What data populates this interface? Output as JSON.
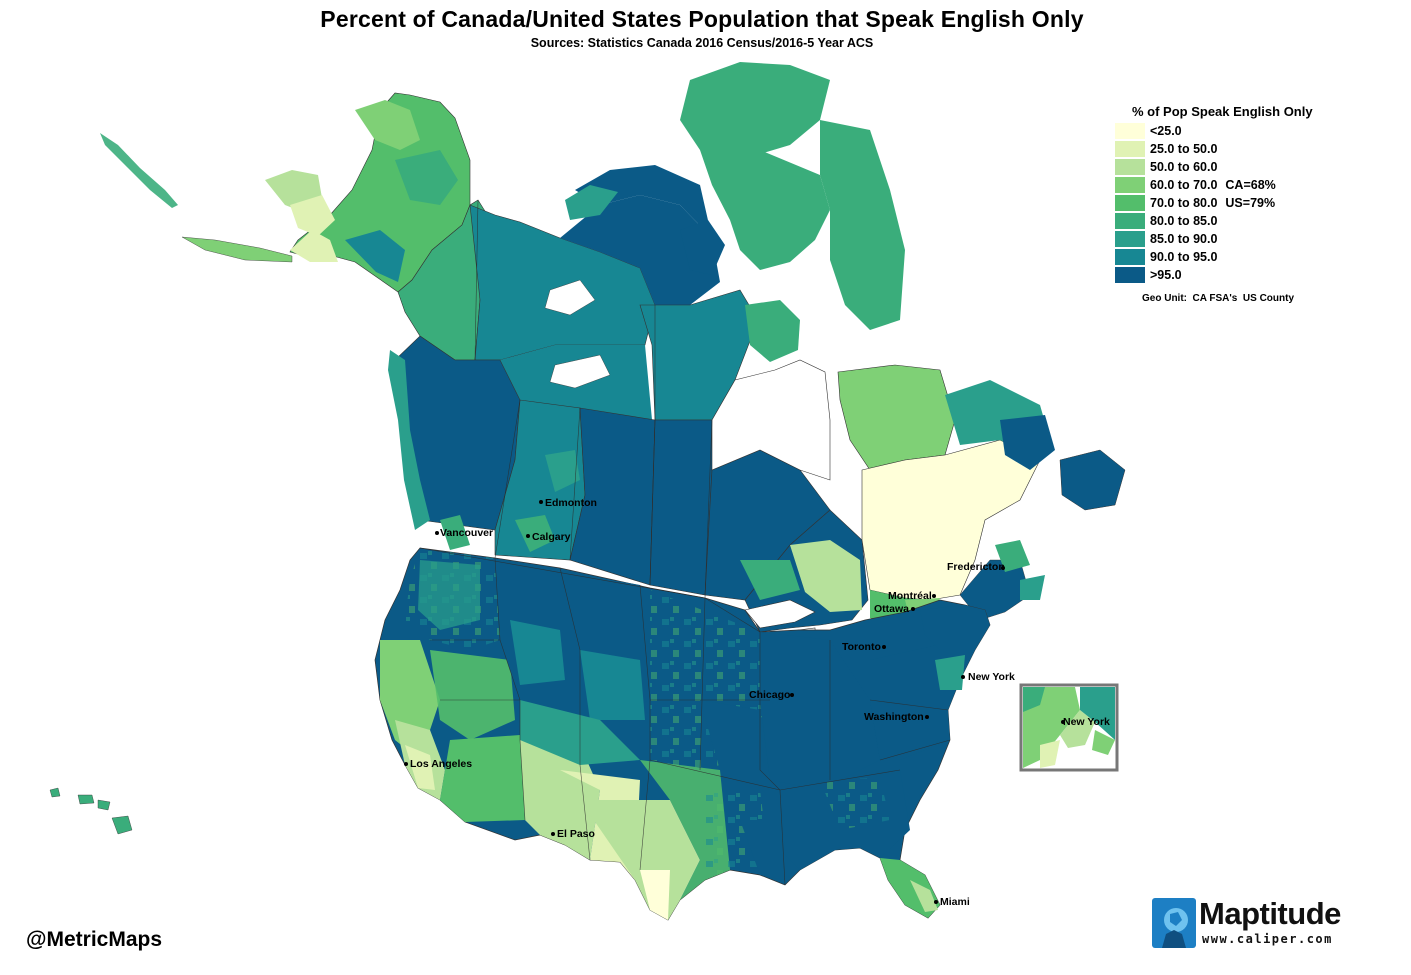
{
  "title": "Percent of Canada/United States Population that Speak English Only",
  "subtitle": "Sources:  Statistics Canada 2016 Census/2016-5 Year ACS",
  "legend": {
    "title": "% of Pop Speak English Only",
    "classes": [
      {
        "label": "<25.0",
        "color": "#ffffd9",
        "note": ""
      },
      {
        "label": "25.0 to 50.0",
        "color": "#e0f2b4",
        "note": ""
      },
      {
        "label": "50.0 to 60.0",
        "color": "#b6e19b",
        "note": ""
      },
      {
        "label": "60.0 to 70.0",
        "color": "#7fd076",
        "note": "CA=68%"
      },
      {
        "label": "70.0 to 80.0",
        "color": "#53be6b",
        "note": "US=79%"
      },
      {
        "label": "80.0 to 85.0",
        "color": "#3aad7b",
        "note": ""
      },
      {
        "label": "85.0 to 90.0",
        "color": "#2a9f8c",
        "note": ""
      },
      {
        "label": "90.0 to 95.0",
        "color": "#178793",
        "note": ""
      },
      {
        "label": ">95.0",
        "color": "#0b5a87",
        "note": ""
      }
    ]
  },
  "geo_unit": "Geo Unit:  CA FSA's  US County",
  "cities": [
    {
      "name": "Edmonton"
    },
    {
      "name": "Calgary"
    },
    {
      "name": "Vancouver"
    },
    {
      "name": "Fredericton"
    },
    {
      "name": "Montréal"
    },
    {
      "name": "Ottawa"
    },
    {
      "name": "Toronto"
    },
    {
      "name": "New York"
    },
    {
      "name": "Chicago"
    },
    {
      "name": "Washington"
    },
    {
      "name": "Los Angeles"
    },
    {
      "name": "El Paso"
    },
    {
      "name": "Miami"
    }
  ],
  "inset": {
    "label": "New York"
  },
  "handle": "@MetricMaps",
  "logo": {
    "name": "Maptitude",
    "url": "www.caliper.com",
    "brand_color": "#1d7fc4"
  }
}
